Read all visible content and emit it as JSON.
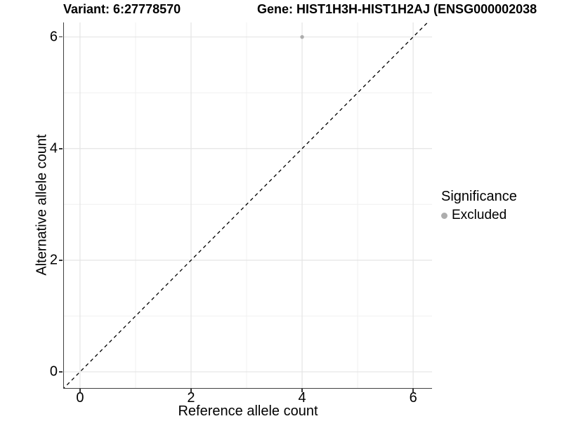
{
  "titles": {
    "variant": "Variant: 6:27778570",
    "gene": "Gene: HIST1H3H-HIST1H2AJ (ENSG000002038"
  },
  "chart_data": {
    "type": "scatter",
    "title_left": "Variant: 6:27778570",
    "title_right": "Gene: HIST1H3H-HIST1H2AJ (ENSG000002038",
    "xlabel": "Reference allele count",
    "ylabel": "Alternative allele count",
    "xlim": [
      -0.29,
      6.34
    ],
    "ylim": [
      -0.29,
      6.26
    ],
    "x_major_ticks": [
      0,
      2,
      4,
      6
    ],
    "y_major_ticks": [
      0,
      2,
      4,
      6
    ],
    "x_minor_gridlines": [
      1,
      3,
      5
    ],
    "y_minor_gridlines": [
      1,
      3,
      5
    ],
    "grid": "major and minor, light gray on white",
    "series": [
      {
        "name": "Excluded",
        "color": "#adadad",
        "points": [
          {
            "x": 4,
            "y": 6
          }
        ]
      }
    ],
    "reference_line": {
      "type": "identity",
      "slope": 1,
      "intercept": 0,
      "style": "dashed",
      "color": "#000000"
    },
    "legend": {
      "title": "Significance",
      "position": "right",
      "items": [
        {
          "label": "Excluded",
          "color": "#adadad",
          "marker": "circle"
        }
      ]
    },
    "colors": {
      "major_gridline": "#e4e4e4",
      "minor_gridline": "#f0f0f0",
      "axis_line": "#404040",
      "tick": "#333333",
      "text": "#000000"
    }
  }
}
